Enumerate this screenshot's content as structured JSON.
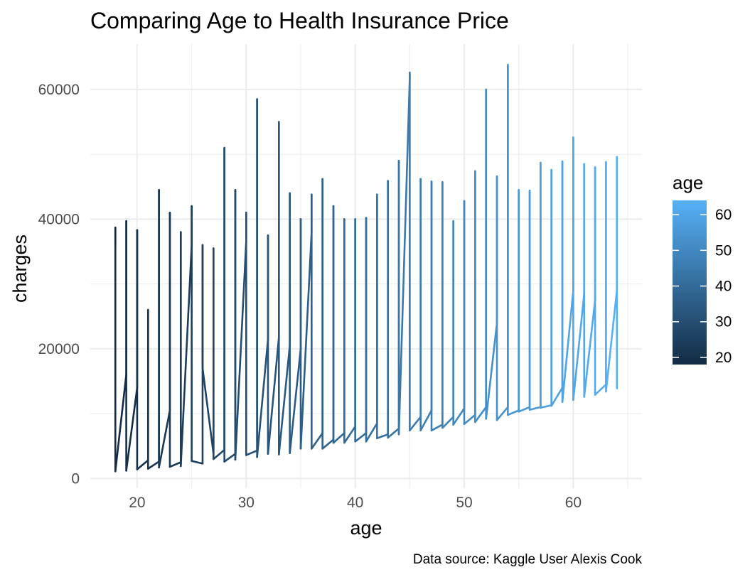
{
  "chart_data": {
    "type": "line",
    "title": "Comparing Age to Health Insurance Price",
    "xlabel": "age",
    "ylabel": "charges",
    "caption": "Data source: Kaggle User Alexis Cook",
    "xlim": [
      15.7,
      66.3
    ],
    "ylim": [
      -1500,
      67000
    ],
    "x_ticks": [
      20,
      30,
      40,
      50,
      60
    ],
    "y_ticks": [
      0,
      20000,
      40000,
      60000
    ],
    "x_tick_labels": [
      "20",
      "30",
      "40",
      "50",
      "60"
    ],
    "y_tick_labels": [
      "0",
      "20000",
      "40000",
      "60000"
    ],
    "grid": true,
    "legend": {
      "title": "age",
      "type": "colorbar",
      "position": "right",
      "range": [
        18,
        64
      ],
      "breaks": [
        20,
        30,
        40,
        50,
        60
      ],
      "break_labels": [
        "20",
        "30",
        "40",
        "50",
        "60"
      ],
      "color_low": "#132B43",
      "color_high": "#56B1F7"
    },
    "series": [
      {
        "color_by": "age",
        "x": [
          18,
          18,
          18,
          19,
          19,
          19,
          20,
          20,
          20,
          21,
          21,
          21,
          22,
          22,
          22,
          23,
          23,
          23,
          24,
          24,
          24,
          25,
          25,
          25,
          26,
          26,
          26,
          27,
          27,
          27,
          28,
          28,
          28,
          29,
          29,
          29,
          30,
          30,
          30,
          31,
          31,
          31,
          32,
          32,
          32,
          33,
          33,
          33,
          34,
          34,
          34,
          35,
          35,
          35,
          36,
          36,
          36,
          37,
          37,
          37,
          38,
          38,
          38,
          39,
          39,
          39,
          40,
          40,
          40,
          41,
          41,
          41,
          42,
          42,
          42,
          43,
          43,
          43,
          44,
          44,
          44,
          45,
          45,
          45,
          46,
          46,
          46,
          47,
          47,
          47,
          48,
          48,
          48,
          49,
          49,
          49,
          50,
          50,
          50,
          51,
          51,
          51,
          52,
          52,
          52,
          53,
          53,
          53,
          54,
          54,
          54,
          55,
          55,
          55,
          56,
          56,
          56,
          57,
          57,
          57,
          58,
          58,
          58,
          59,
          59,
          59,
          60,
          60,
          60,
          61,
          61,
          61,
          62,
          62,
          62,
          63,
          63,
          63,
          64,
          64,
          64
        ],
        "y": [
          36000,
          38700,
          1100,
          16000,
          39700,
          1200,
          14000,
          38300,
          1400,
          2800,
          26000,
          1500,
          2600,
          44500,
          1700,
          10500,
          41000,
          1800,
          2500,
          38000,
          1900,
          36000,
          42000,
          2700,
          2300,
          36000,
          17000,
          3800,
          35500,
          3000,
          4400,
          51000,
          2600,
          3800,
          44500,
          2900,
          36500,
          41000,
          3600,
          4300,
          58500,
          3300,
          21500,
          37500,
          3800,
          21800,
          55000,
          3700,
          20500,
          44000,
          3900,
          20000,
          40000,
          4600,
          38000,
          43800,
          4600,
          7000,
          46200,
          4600,
          6000,
          42000,
          5500,
          7000,
          40000,
          5500,
          8000,
          40000,
          5700,
          7000,
          40200,
          5700,
          8500,
          43800,
          6200,
          6800,
          45900,
          6300,
          7700,
          49000,
          6800,
          61600,
          62600,
          7400,
          9500,
          46200,
          7400,
          10500,
          45800,
          7400,
          8300,
          45700,
          7800,
          9500,
          39700,
          8300,
          10800,
          42800,
          8400,
          9800,
          47400,
          8700,
          11000,
          60000,
          9200,
          24000,
          46600,
          9000,
          11000,
          63800,
          9800,
          10500,
          44500,
          10300,
          11000,
          44400,
          10600,
          11000,
          48700,
          10900,
          11300,
          47600,
          11200,
          14000,
          48900,
          11800,
          29000,
          52600,
          12100,
          28500,
          48500,
          12600,
          27500,
          48000,
          12900,
          14500,
          48800,
          13400,
          29000,
          49600,
          13900
        ]
      }
    ]
  }
}
